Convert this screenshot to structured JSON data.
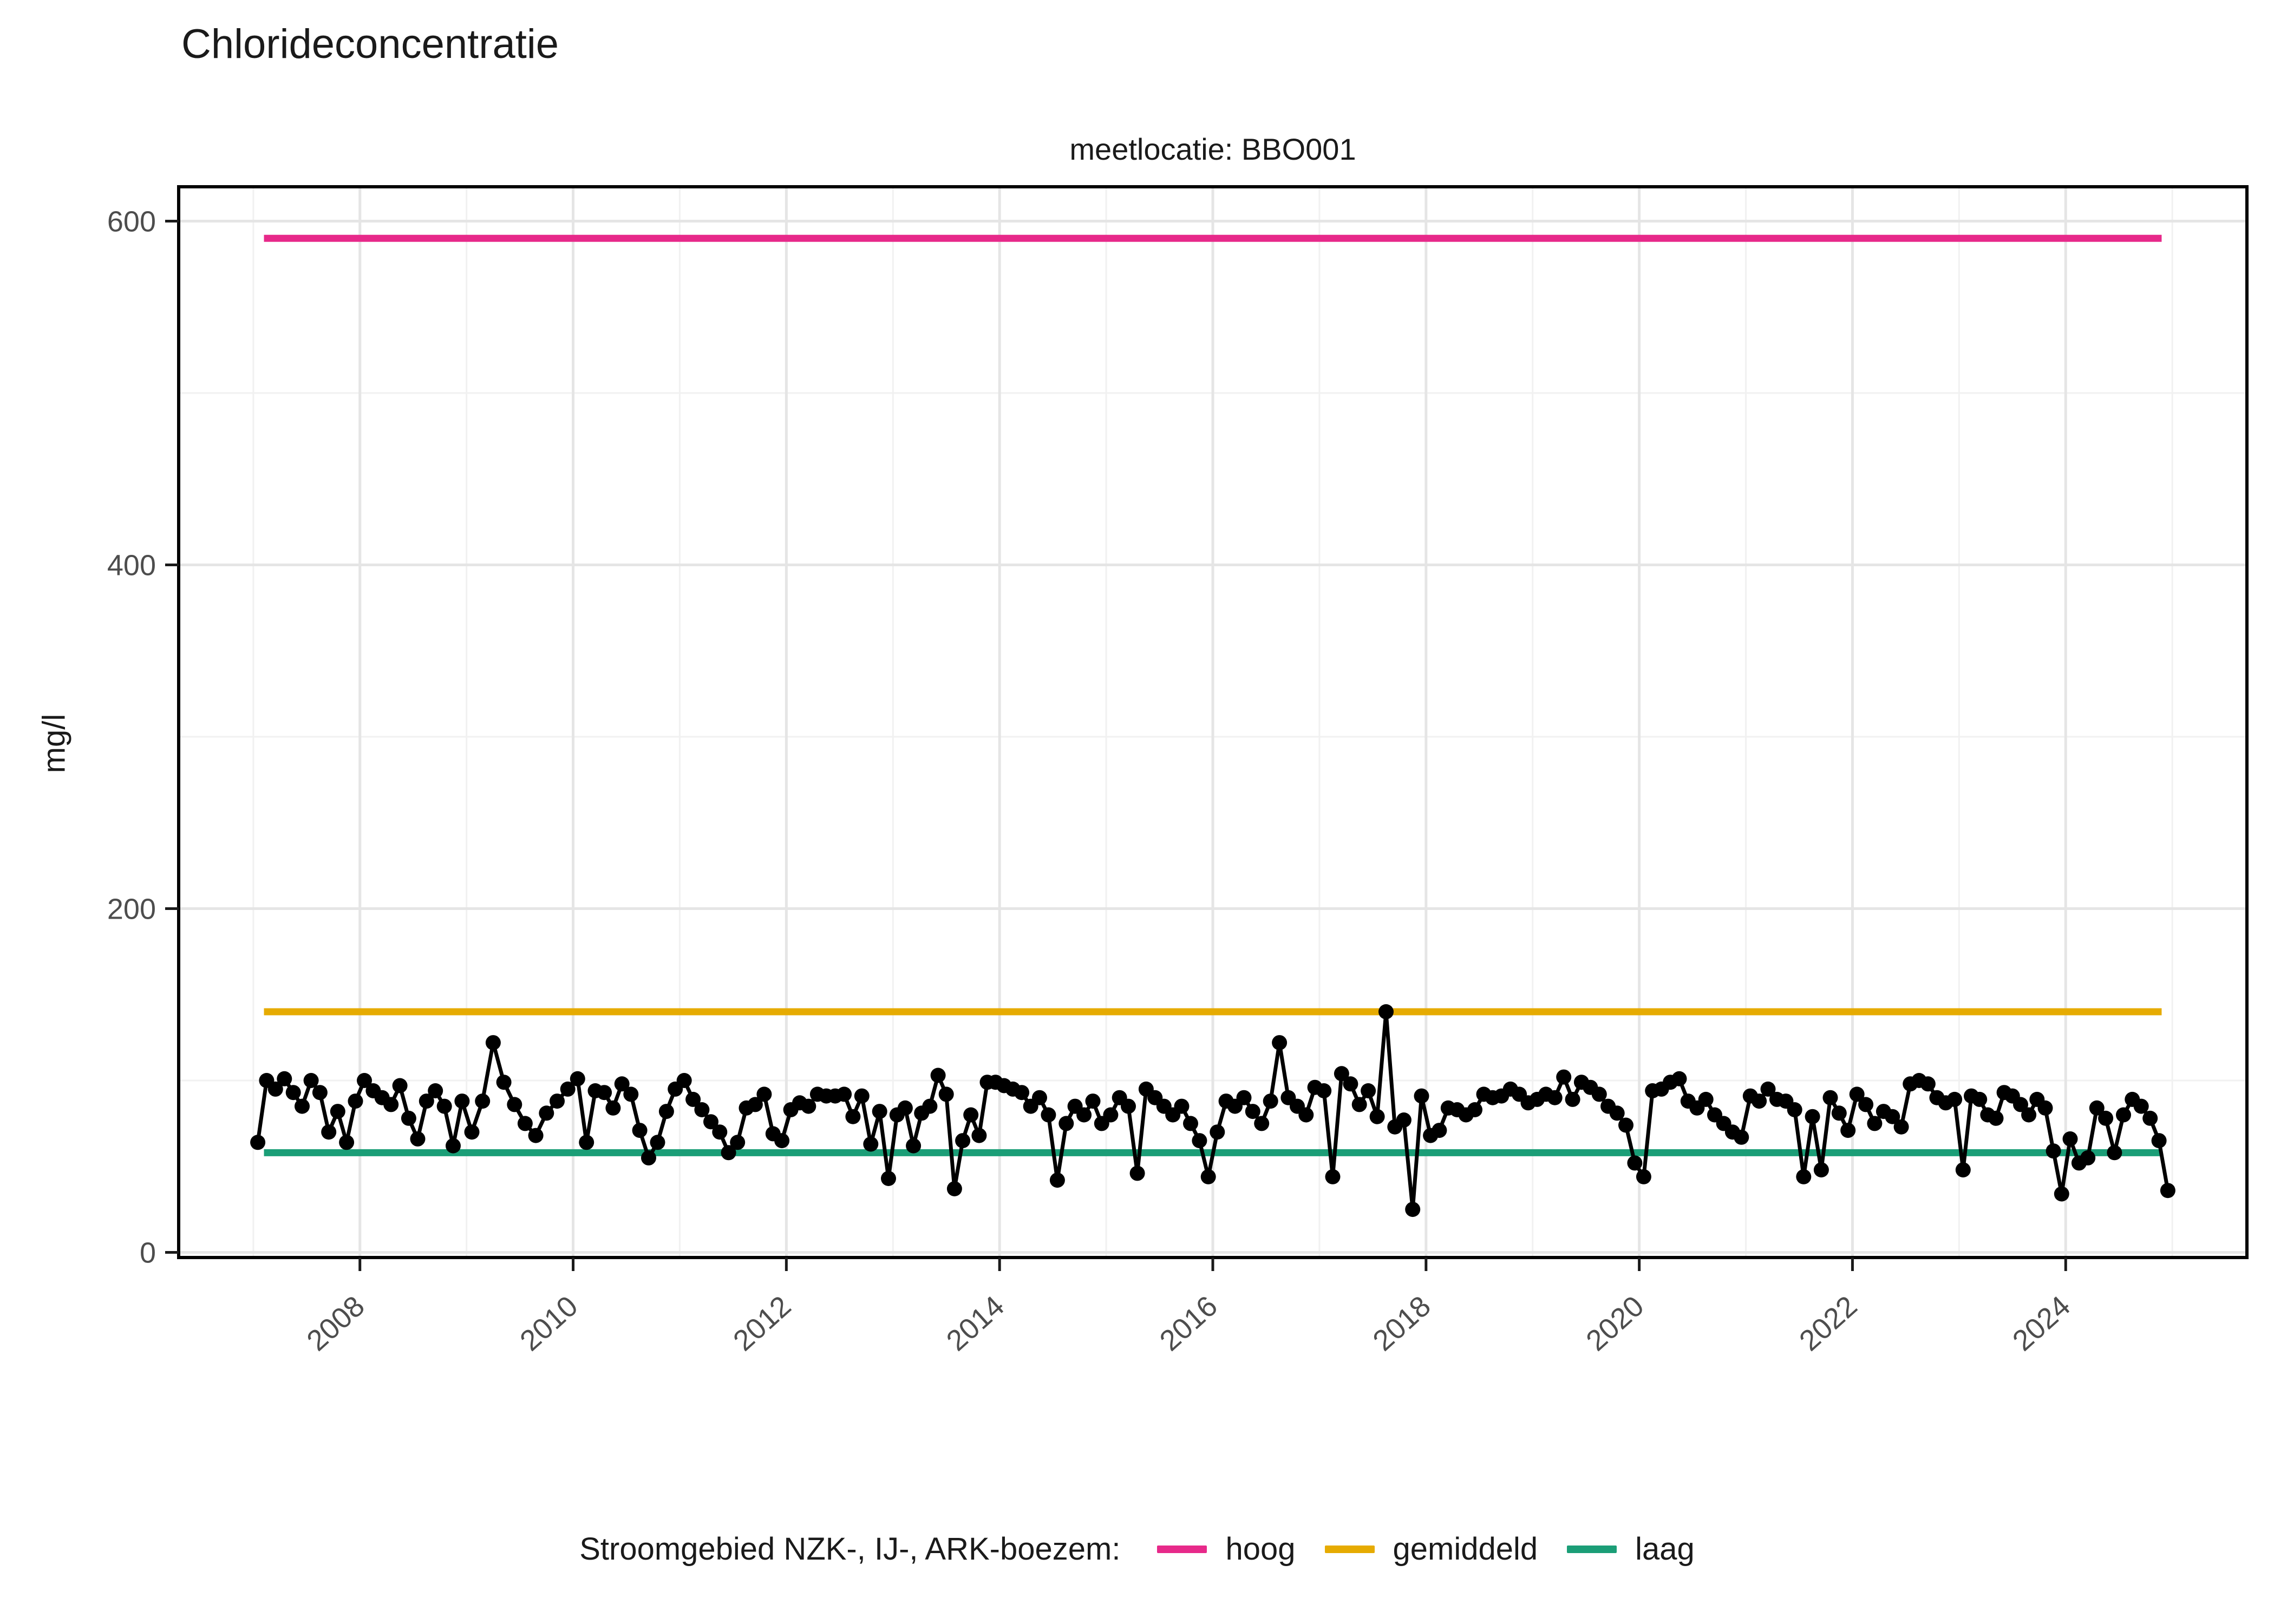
{
  "title": "Chlorideconcentratie",
  "subtitle": "meetlocatie: BBO001",
  "y_axis": {
    "label": "mg/l",
    "ticks": [
      "0",
      "200",
      "400",
      "600"
    ],
    "tick_values": [
      0,
      200,
      400,
      600
    ]
  },
  "x_axis": {
    "ticks": [
      "2008",
      "2010",
      "2012",
      "2014",
      "2016",
      "2018",
      "2020",
      "2022",
      "2024"
    ],
    "tick_values": [
      2008,
      2010,
      2012,
      2014,
      2016,
      2018,
      2020,
      2022,
      2024
    ]
  },
  "legend": {
    "title": "Stroomgebied NZK-, IJ-, ARK-boezem:",
    "items": [
      {
        "label": "hoog",
        "color": "#E7298A"
      },
      {
        "label": "gemiddeld",
        "color": "#E6AB02"
      },
      {
        "label": "laag",
        "color": "#1B9E77"
      }
    ]
  },
  "chart_data": {
    "type": "line",
    "title": "Chlorideconcentratie",
    "subtitle": "meetlocatie: BBO001",
    "xlabel": "",
    "ylabel": "mg/l",
    "xlim": [
      2006.3,
      2025.7
    ],
    "ylim": [
      -3,
      620
    ],
    "grid": {
      "x_major": [
        2008,
        2010,
        2012,
        2014,
        2016,
        2018,
        2020,
        2022,
        2024
      ],
      "x_minor": [
        2007,
        2009,
        2011,
        2013,
        2015,
        2017,
        2019,
        2021,
        2023,
        2025
      ],
      "y_major": [
        0,
        200,
        400,
        600
      ],
      "y_minor": [
        100,
        300,
        500
      ]
    },
    "reference_lines": [
      {
        "name": "hoog",
        "value": 590,
        "color": "#E7298A",
        "x_start": 2007.1,
        "x_end": 2024.9
      },
      {
        "name": "gemiddeld",
        "value": 140,
        "color": "#E6AB02",
        "x_start": 2007.1,
        "x_end": 2024.9
      },
      {
        "name": "laag",
        "value": 58,
        "color": "#1B9E77",
        "x_start": 2007.1,
        "x_end": 2024.9
      }
    ],
    "series": [
      {
        "name": "chlorideconcentratie BBO001",
        "color": "#000000",
        "points": [
          [
            2007.042,
            64
          ],
          [
            2007.125,
            100
          ],
          [
            2007.208,
            95
          ],
          [
            2007.292,
            101
          ],
          [
            2007.375,
            93
          ],
          [
            2007.458,
            85
          ],
          [
            2007.542,
            100
          ],
          [
            2007.625,
            93
          ],
          [
            2007.708,
            70
          ],
          [
            2007.792,
            82
          ],
          [
            2007.875,
            64
          ],
          [
            2007.958,
            88
          ],
          [
            2008.042,
            100
          ],
          [
            2008.125,
            94
          ],
          [
            2008.208,
            90
          ],
          [
            2008.292,
            86
          ],
          [
            2008.375,
            97
          ],
          [
            2008.458,
            78
          ],
          [
            2008.542,
            66
          ],
          [
            2008.625,
            88
          ],
          [
            2008.708,
            94
          ],
          [
            2008.792,
            85
          ],
          [
            2008.875,
            62
          ],
          [
            2008.958,
            88
          ],
          [
            2009.05,
            70
          ],
          [
            2009.15,
            88
          ],
          [
            2009.25,
            122
          ],
          [
            2009.35,
            99
          ],
          [
            2009.45,
            86
          ],
          [
            2009.55,
            75
          ],
          [
            2009.65,
            68
          ],
          [
            2009.75,
            81
          ],
          [
            2009.85,
            88
          ],
          [
            2009.95,
            95
          ],
          [
            2010.042,
            101
          ],
          [
            2010.125,
            64
          ],
          [
            2010.208,
            94
          ],
          [
            2010.292,
            93
          ],
          [
            2010.375,
            84
          ],
          [
            2010.458,
            98
          ],
          [
            2010.542,
            92
          ],
          [
            2010.625,
            71
          ],
          [
            2010.708,
            55
          ],
          [
            2010.792,
            64
          ],
          [
            2010.875,
            82
          ],
          [
            2010.958,
            95
          ],
          [
            2011.042,
            100
          ],
          [
            2011.125,
            89
          ],
          [
            2011.208,
            83
          ],
          [
            2011.292,
            76
          ],
          [
            2011.375,
            70
          ],
          [
            2011.458,
            58
          ],
          [
            2011.542,
            64
          ],
          [
            2011.625,
            84
          ],
          [
            2011.708,
            86
          ],
          [
            2011.792,
            92
          ],
          [
            2011.875,
            69
          ],
          [
            2011.958,
            65
          ],
          [
            2012.042,
            83
          ],
          [
            2012.125,
            87
          ],
          [
            2012.208,
            85
          ],
          [
            2012.292,
            92
          ],
          [
            2012.375,
            91
          ],
          [
            2012.458,
            91
          ],
          [
            2012.542,
            92
          ],
          [
            2012.625,
            79
          ],
          [
            2012.708,
            91
          ],
          [
            2012.792,
            63
          ],
          [
            2012.875,
            82
          ],
          [
            2012.958,
            43
          ],
          [
            2013.038,
            80
          ],
          [
            2013.115,
            84
          ],
          [
            2013.192,
            62
          ],
          [
            2013.269,
            81
          ],
          [
            2013.346,
            85
          ],
          [
            2013.423,
            103
          ],
          [
            2013.5,
            92
          ],
          [
            2013.577,
            37
          ],
          [
            2013.654,
            65
          ],
          [
            2013.731,
            80
          ],
          [
            2013.808,
            68
          ],
          [
            2013.885,
            99
          ],
          [
            2013.962,
            99
          ],
          [
            2014.042,
            97
          ],
          [
            2014.125,
            95
          ],
          [
            2014.208,
            93
          ],
          [
            2014.292,
            85
          ],
          [
            2014.375,
            90
          ],
          [
            2014.458,
            80
          ],
          [
            2014.542,
            42
          ],
          [
            2014.625,
            75
          ],
          [
            2014.708,
            85
          ],
          [
            2014.792,
            80
          ],
          [
            2014.875,
            88
          ],
          [
            2014.958,
            75
          ],
          [
            2015.042,
            80
          ],
          [
            2015.125,
            90
          ],
          [
            2015.208,
            85
          ],
          [
            2015.292,
            46
          ],
          [
            2015.375,
            95
          ],
          [
            2015.458,
            90
          ],
          [
            2015.542,
            85
          ],
          [
            2015.625,
            80
          ],
          [
            2015.708,
            85
          ],
          [
            2015.792,
            75
          ],
          [
            2015.875,
            65
          ],
          [
            2015.958,
            44
          ],
          [
            2016.042,
            70
          ],
          [
            2016.125,
            88
          ],
          [
            2016.208,
            85
          ],
          [
            2016.292,
            90
          ],
          [
            2016.375,
            82
          ],
          [
            2016.458,
            75
          ],
          [
            2016.542,
            88
          ],
          [
            2016.625,
            122
          ],
          [
            2016.708,
            90
          ],
          [
            2016.792,
            85
          ],
          [
            2016.875,
            80
          ],
          [
            2016.958,
            96
          ],
          [
            2017.042,
            94
          ],
          [
            2017.125,
            44
          ],
          [
            2017.208,
            104
          ],
          [
            2017.292,
            98
          ],
          [
            2017.375,
            86
          ],
          [
            2017.458,
            94
          ],
          [
            2017.542,
            79
          ],
          [
            2017.625,
            140
          ],
          [
            2017.708,
            73
          ],
          [
            2017.792,
            77
          ],
          [
            2017.875,
            25
          ],
          [
            2017.958,
            91
          ],
          [
            2018.042,
            68
          ],
          [
            2018.125,
            71
          ],
          [
            2018.208,
            84
          ],
          [
            2018.292,
            83
          ],
          [
            2018.375,
            80
          ],
          [
            2018.458,
            83
          ],
          [
            2018.542,
            92
          ],
          [
            2018.625,
            90
          ],
          [
            2018.708,
            91
          ],
          [
            2018.792,
            95
          ],
          [
            2018.875,
            92
          ],
          [
            2018.958,
            87
          ],
          [
            2019.042,
            89
          ],
          [
            2019.125,
            92
          ],
          [
            2019.208,
            90
          ],
          [
            2019.292,
            102
          ],
          [
            2019.375,
            89
          ],
          [
            2019.458,
            99
          ],
          [
            2019.542,
            96
          ],
          [
            2019.625,
            92
          ],
          [
            2019.708,
            85
          ],
          [
            2019.792,
            81
          ],
          [
            2019.875,
            74
          ],
          [
            2019.958,
            52
          ],
          [
            2020.042,
            44
          ],
          [
            2020.125,
            94
          ],
          [
            2020.208,
            95
          ],
          [
            2020.292,
            99
          ],
          [
            2020.375,
            101
          ],
          [
            2020.458,
            88
          ],
          [
            2020.542,
            84
          ],
          [
            2020.625,
            89
          ],
          [
            2020.708,
            80
          ],
          [
            2020.792,
            75
          ],
          [
            2020.875,
            70
          ],
          [
            2020.958,
            67
          ],
          [
            2021.042,
            91
          ],
          [
            2021.125,
            88
          ],
          [
            2021.208,
            95
          ],
          [
            2021.292,
            89
          ],
          [
            2021.375,
            88
          ],
          [
            2021.458,
            83
          ],
          [
            2021.542,
            44
          ],
          [
            2021.625,
            79
          ],
          [
            2021.708,
            48
          ],
          [
            2021.792,
            90
          ],
          [
            2021.875,
            81
          ],
          [
            2021.958,
            71
          ],
          [
            2022.042,
            92
          ],
          [
            2022.125,
            86
          ],
          [
            2022.208,
            75
          ],
          [
            2022.292,
            82
          ],
          [
            2022.375,
            79
          ],
          [
            2022.458,
            73
          ],
          [
            2022.542,
            98
          ],
          [
            2022.625,
            100
          ],
          [
            2022.708,
            98
          ],
          [
            2022.792,
            90
          ],
          [
            2022.875,
            87
          ],
          [
            2022.958,
            89
          ],
          [
            2023.038,
            48
          ],
          [
            2023.115,
            91
          ],
          [
            2023.192,
            89
          ],
          [
            2023.269,
            80
          ],
          [
            2023.346,
            78
          ],
          [
            2023.423,
            93
          ],
          [
            2023.5,
            91
          ],
          [
            2023.577,
            86
          ],
          [
            2023.654,
            80
          ],
          [
            2023.731,
            89
          ],
          [
            2023.808,
            84
          ],
          [
            2023.885,
            59
          ],
          [
            2023.962,
            34
          ],
          [
            2024.042,
            66
          ],
          [
            2024.125,
            52
          ],
          [
            2024.208,
            55
          ],
          [
            2024.292,
            84
          ],
          [
            2024.375,
            78
          ],
          [
            2024.458,
            58
          ],
          [
            2024.542,
            80
          ],
          [
            2024.625,
            89
          ],
          [
            2024.708,
            85
          ],
          [
            2024.792,
            78
          ],
          [
            2024.875,
            65
          ],
          [
            2024.958,
            36
          ]
        ]
      }
    ],
    "legend_position": "bottom",
    "colors": {
      "hoog": "#E7298A",
      "gemiddeld": "#E6AB02",
      "laag": "#1B9E77",
      "points": "#000000",
      "grid_major": "#E5E5E5",
      "grid_minor": "#F1F1F1",
      "panel_border": "#000000",
      "tick_text": "#4D4D4D"
    }
  }
}
